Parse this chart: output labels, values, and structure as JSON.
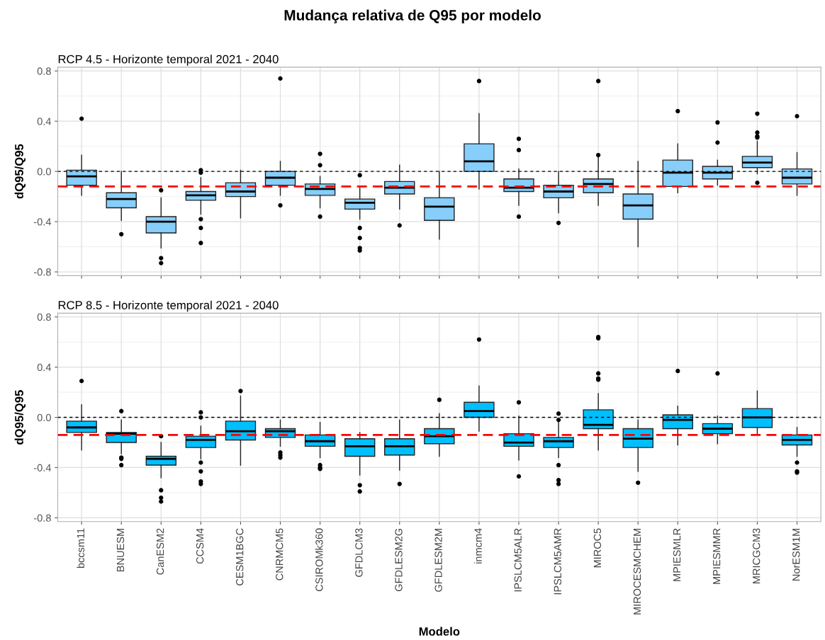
{
  "chart_data": [
    {
      "type": "box",
      "title": "Mudança relativa de Q95 por modelo",
      "subtitle": "RCP 4.5 - Horizonte temporal 2021 - 2040",
      "ylabel": "dQ95/Q95",
      "ylim": [
        -0.83,
        0.83
      ],
      "yticks": [
        {
          "value": -0.8,
          "label": "-0.8"
        },
        {
          "value": -0.4,
          "label": "-0.4"
        },
        {
          "value": 0,
          "label": "0.0"
        },
        {
          "value": 0.4,
          "label": "0.4"
        },
        {
          "value": 0.8,
          "label": "0.8"
        }
      ],
      "grid": true,
      "tick_labels": "y",
      "ref_lines": [
        {
          "axis": "y",
          "value": 0,
          "color": "#000000",
          "line_style": "dotted"
        },
        {
          "axis": "y",
          "value": -0.12,
          "color": "#ff0000",
          "line_style": "dashed"
        }
      ],
      "series": [
        {
          "color": "#87cefa",
          "boxes": [
            {
              "low": -0.19,
              "q1": -0.11,
              "median": -0.04,
              "q3": 0.01,
              "high": 0.13,
              "outliers": [
                0.42
              ]
            },
            {
              "low": -0.39,
              "q1": -0.29,
              "median": -0.22,
              "q3": -0.17,
              "high": 0.0,
              "outliers": [
                -0.5
              ]
            },
            {
              "low": -0.61,
              "q1": -0.49,
              "median": -0.4,
              "q3": -0.36,
              "high": -0.21,
              "outliers": [
                -0.15,
                -0.69,
                -0.73
              ]
            },
            {
              "low": -0.34,
              "q1": -0.23,
              "median": -0.19,
              "q3": -0.16,
              "high": -0.05,
              "outliers": [
                0.01,
                -0.01,
                -0.38,
                -0.45,
                -0.57
              ]
            },
            {
              "low": -0.37,
              "q1": -0.2,
              "median": -0.16,
              "q3": -0.09,
              "high": 0.01
            },
            {
              "low": -0.19,
              "q1": -0.11,
              "median": -0.05,
              "q3": 0.0,
              "high": 0.08,
              "outliers": [
                0.74,
                -0.27
              ]
            },
            {
              "low": -0.29,
              "q1": -0.19,
              "median": -0.14,
              "q3": -0.1,
              "high": -0.04,
              "outliers": [
                0.14,
                0.05,
                -0.36
              ]
            },
            {
              "low": -0.38,
              "q1": -0.3,
              "median": -0.25,
              "q3": -0.22,
              "high": -0.13,
              "outliers": [
                -0.03,
                -0.45,
                -0.53,
                -0.61,
                -0.63
              ]
            },
            {
              "low": -0.3,
              "q1": -0.18,
              "median": -0.13,
              "q3": -0.08,
              "high": 0.05,
              "outliers": [
                -0.43
              ]
            },
            {
              "low": -0.54,
              "q1": -0.39,
              "median": -0.28,
              "q3": -0.21,
              "high": 0.0
            },
            {
              "low": -0.14,
              "q1": 0.0,
              "median": 0.08,
              "q3": 0.22,
              "high": 0.46,
              "outliers": [
                0.72
              ]
            },
            {
              "low": -0.27,
              "q1": -0.16,
              "median": -0.13,
              "q3": -0.06,
              "high": 0.02,
              "outliers": [
                0.26,
                0.17,
                -0.36
              ]
            },
            {
              "low": -0.33,
              "q1": -0.21,
              "median": -0.16,
              "q3": -0.11,
              "high": 0.0,
              "outliers": [
                -0.41
              ]
            },
            {
              "low": -0.27,
              "q1": -0.17,
              "median": -0.1,
              "q3": -0.06,
              "high": 0.11,
              "outliers": [
                0.72,
                0.13
              ]
            },
            {
              "low": -0.6,
              "q1": -0.38,
              "median": -0.27,
              "q3": -0.18,
              "high": 0.08
            },
            {
              "low": -0.17,
              "q1": -0.12,
              "median": -0.01,
              "q3": 0.09,
              "high": 0.22,
              "outliers": [
                0.48
              ]
            },
            {
              "low": -0.11,
              "q1": -0.06,
              "median": -0.01,
              "q3": 0.04,
              "high": 0.09,
              "outliers": [
                0.39,
                0.23
              ]
            },
            {
              "low": -0.02,
              "q1": 0.03,
              "median": 0.07,
              "q3": 0.12,
              "high": 0.24,
              "outliers": [
                0.46,
                0.31,
                0.28,
                0.27,
                -0.09
              ]
            },
            {
              "low": -0.19,
              "q1": -0.1,
              "median": -0.05,
              "q3": 0.02,
              "high": 0.15,
              "outliers": [
                0.44
              ]
            }
          ]
        }
      ]
    },
    {
      "type": "box",
      "subtitle": "RCP 8.5 - Horizonte temporal 2021 - 2040",
      "ylabel": "dQ95/Q95",
      "xlabel": "Modelo",
      "categories": [
        "bccsm11",
        "BNUESM",
        "CanESM2",
        "CCSM4",
        "CESM1BGC",
        "CNRMCM5",
        "CSIROMk360",
        "GFDLCM3",
        "GFDLESM2G",
        "GFDLESM2M",
        "inmcm4",
        "IPSLCM5ALR",
        "IPSLCM5AMR",
        "MIROC5",
        "MIROCESMCHEM",
        "MPIESMLR",
        "MPIESMMR",
        "MRICGCM3",
        "NorESM1M"
      ],
      "ylim": [
        -0.83,
        0.83
      ],
      "yticks": [
        {
          "value": -0.8,
          "label": "-0.8"
        },
        {
          "value": -0.4,
          "label": "-0.4"
        },
        {
          "value": 0,
          "label": "0.0"
        },
        {
          "value": 0.4,
          "label": "0.4"
        },
        {
          "value": 0.8,
          "label": "0.8"
        }
      ],
      "grid": true,
      "ref_lines": [
        {
          "axis": "y",
          "value": 0,
          "color": "#000000",
          "line_style": "dotted"
        },
        {
          "axis": "y",
          "value": -0.14,
          "color": "#ff0000",
          "line_style": "dashed"
        }
      ],
      "series": [
        {
          "color": "#00bfff",
          "boxes": [
            {
              "low": -0.26,
              "q1": -0.12,
              "median": -0.08,
              "q3": -0.03,
              "high": 0.1,
              "outliers": [
                0.29
              ]
            },
            {
              "low": -0.29,
              "q1": -0.2,
              "median": -0.13,
              "q3": -0.12,
              "high": -0.02,
              "outliers": [
                0.05,
                -0.32,
                -0.33,
                -0.38
              ]
            },
            {
              "low": -0.48,
              "q1": -0.38,
              "median": -0.33,
              "q3": -0.31,
              "high": -0.2,
              "outliers": [
                -0.15,
                -0.58,
                -0.64,
                -0.67
              ]
            },
            {
              "low": -0.33,
              "q1": -0.24,
              "median": -0.18,
              "q3": -0.15,
              "high": -0.07,
              "outliers": [
                0.04,
                0.0,
                -0.36,
                -0.43,
                -0.51,
                -0.53
              ]
            },
            {
              "low": -0.38,
              "q1": -0.18,
              "median": -0.11,
              "q3": -0.03,
              "high": 0.17,
              "outliers": [
                0.21
              ]
            },
            {
              "low": -0.23,
              "q1": -0.16,
              "median": -0.11,
              "q3": -0.09,
              "high": -0.02,
              "outliers": [
                -0.28,
                -0.3,
                -0.32
              ]
            },
            {
              "low": -0.32,
              "q1": -0.23,
              "median": -0.19,
              "q3": -0.14,
              "high": -0.04,
              "outliers": [
                -0.38,
                -0.4,
                -0.41
              ]
            },
            {
              "low": -0.46,
              "q1": -0.31,
              "median": -0.23,
              "q3": -0.17,
              "high": -0.12,
              "outliers": [
                -0.54,
                -0.59
              ]
            },
            {
              "low": -0.42,
              "q1": -0.3,
              "median": -0.23,
              "q3": -0.17,
              "high": -0.02,
              "outliers": [
                -0.53
              ]
            },
            {
              "low": -0.31,
              "q1": -0.21,
              "median": -0.15,
              "q3": -0.09,
              "high": 0.03,
              "outliers": [
                0.14
              ]
            },
            {
              "low": -0.11,
              "q1": 0.0,
              "median": 0.05,
              "q3": 0.12,
              "high": 0.25,
              "outliers": [
                0.62
              ]
            },
            {
              "low": -0.34,
              "q1": -0.23,
              "median": -0.2,
              "q3": -0.13,
              "high": 0.01,
              "outliers": [
                0.12,
                -0.47
              ]
            },
            {
              "low": -0.32,
              "q1": -0.24,
              "median": -0.19,
              "q3": -0.16,
              "high": -0.04,
              "outliers": [
                0.03,
                -0.02,
                -0.38,
                -0.5,
                -0.53
              ]
            },
            {
              "low": -0.26,
              "q1": -0.09,
              "median": -0.06,
              "q3": 0.06,
              "high": 0.19,
              "outliers": [
                0.64,
                0.63,
                0.35,
                0.31,
                0.3
              ]
            },
            {
              "low": -0.43,
              "q1": -0.24,
              "median": -0.17,
              "q3": -0.09,
              "high": -0.02,
              "outliers": [
                -0.52
              ]
            },
            {
              "low": -0.22,
              "q1": -0.09,
              "median": -0.02,
              "q3": 0.02,
              "high": 0.09,
              "outliers": [
                0.37
              ]
            },
            {
              "low": -0.21,
              "q1": -0.13,
              "median": -0.09,
              "q3": -0.05,
              "high": 0.01,
              "outliers": [
                0.35
              ]
            },
            {
              "low": -0.14,
              "q1": -0.08,
              "median": 0.0,
              "q3": 0.07,
              "high": 0.21
            },
            {
              "low": -0.31,
              "q1": -0.22,
              "median": -0.18,
              "q3": -0.14,
              "high": -0.08,
              "outliers": [
                -0.36,
                -0.43,
                -0.44
              ]
            }
          ]
        }
      ]
    }
  ]
}
